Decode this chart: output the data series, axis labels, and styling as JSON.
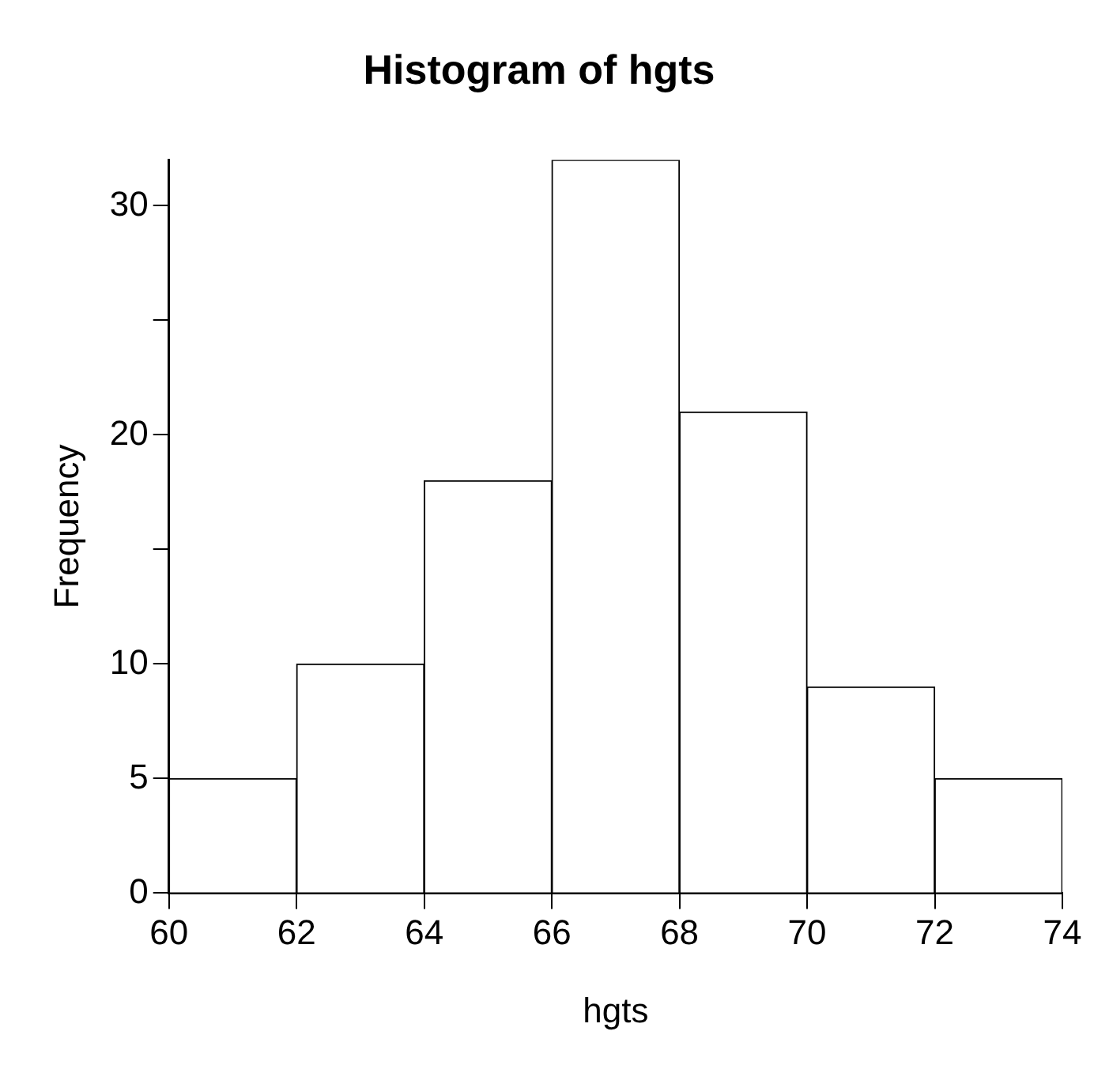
{
  "chart_data": {
    "type": "histogram",
    "title": "Histogram of hgts",
    "xlabel": "hgts",
    "ylabel": "Frequency",
    "bins": [
      60,
      62,
      64,
      66,
      68,
      70,
      72,
      74
    ],
    "values": [
      5,
      10,
      18,
      32,
      21,
      9,
      5
    ],
    "color": "#ffffff",
    "xlim": [
      60,
      74
    ],
    "xticks": [
      60,
      62,
      64,
      66,
      68,
      70,
      72,
      74
    ],
    "ylim": [
      0,
      32
    ],
    "yticks": [
      0,
      5,
      10,
      {
        "value": 15,
        "label": null
      },
      20,
      {
        "value": 25,
        "label": null
      },
      30
    ],
    "grid": false,
    "legend": false
  }
}
